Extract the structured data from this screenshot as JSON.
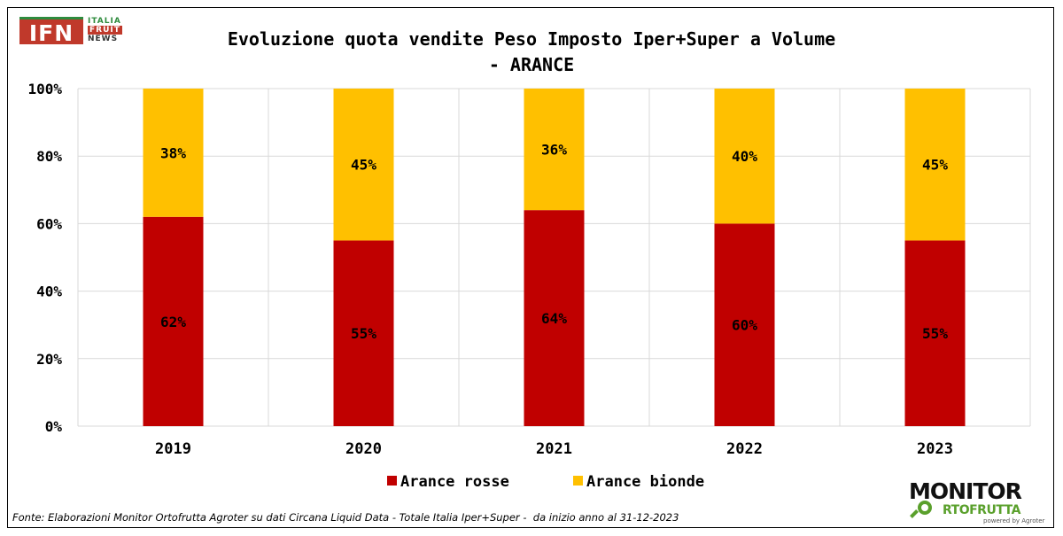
{
  "logo": {
    "ifn_text": "IFN",
    "line1": "ITALIA",
    "line2": "FRUIT",
    "line3": "NEWS"
  },
  "chart_data": {
    "type": "bar",
    "stacked": true,
    "title_line1": "Evoluzione quota vendite Peso Imposto Iper+Super a Volume",
    "title_line2": "- ARANCE",
    "categories": [
      "2019",
      "2020",
      "2021",
      "2022",
      "2023"
    ],
    "series": [
      {
        "name": "Arance rosse",
        "color": "#c00000",
        "values": [
          62,
          55,
          64,
          60,
          55
        ],
        "labels": [
          "62%",
          "55%",
          "64%",
          "60%",
          "55%"
        ]
      },
      {
        "name": "Arance bionde",
        "color": "#ffc000",
        "values": [
          38,
          45,
          36,
          40,
          45
        ],
        "labels": [
          "38%",
          "45%",
          "36%",
          "40%",
          "45%"
        ]
      }
    ],
    "ylim": [
      0,
      100
    ],
    "yticks": [
      0,
      20,
      40,
      60,
      80,
      100
    ],
    "ytick_labels": [
      "0%",
      "20%",
      "40%",
      "60%",
      "80%",
      "100%"
    ],
    "grid": true,
    "legend_position": "bottom"
  },
  "footer": {
    "source": "Fonte: Elaborazioni Monitor Ortofrutta Agroter su dati Circana Liquid Data - Totale Italia Iper+Super -  da inizio anno al 31-12-2023"
  },
  "monitor_logo": {
    "top": "MONITOR",
    "sub": "RTOFRUTTA",
    "tag": "powered by Agroter"
  }
}
